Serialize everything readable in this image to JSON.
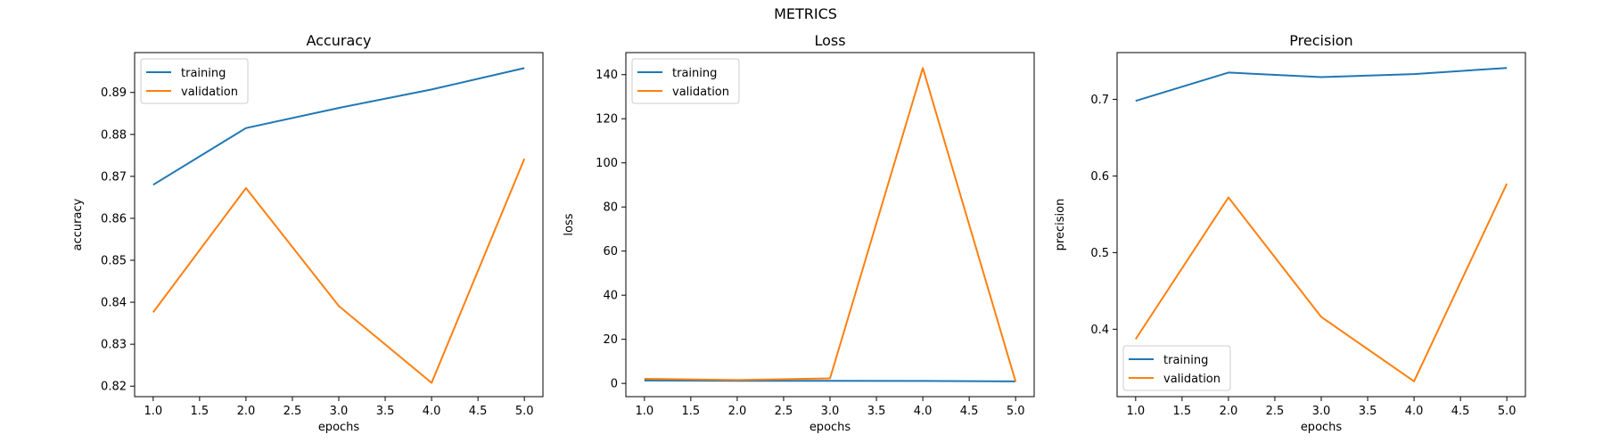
{
  "figure": {
    "title": "METRICS"
  },
  "chart_data": [
    {
      "type": "line",
      "title": "Accuracy",
      "xlabel": "epochs",
      "ylabel": "accuracy",
      "x": [
        1,
        2,
        3,
        4,
        5
      ],
      "xlim": [
        0.8,
        5.2
      ],
      "ylim": [
        0.8175,
        0.8995
      ],
      "xticks": [
        "1.0",
        "1.5",
        "2.0",
        "2.5",
        "3.0",
        "3.5",
        "4.0",
        "4.5",
        "5.0"
      ],
      "yticks": [
        "0.82",
        "0.83",
        "0.84",
        "0.85",
        "0.86",
        "0.87",
        "0.88",
        "0.89"
      ],
      "grid": false,
      "legend": "upper left",
      "series": [
        {
          "name": "training",
          "color": "#1f77b4",
          "values": [
            0.868,
            0.8815,
            0.8863,
            0.8907,
            0.8958
          ]
        },
        {
          "name": "validation",
          "color": "#ff7f0e",
          "values": [
            0.8376,
            0.8672,
            0.8391,
            0.8208,
            0.8742
          ]
        }
      ]
    },
    {
      "type": "line",
      "title": "Loss",
      "xlabel": "epochs",
      "ylabel": "loss",
      "x": [
        1,
        2,
        3,
        4,
        5
      ],
      "xlim": [
        0.8,
        5.2
      ],
      "ylim": [
        -6,
        150
      ],
      "xticks": [
        "1.0",
        "1.5",
        "2.0",
        "2.5",
        "3.0",
        "3.5",
        "4.0",
        "4.5",
        "5.0"
      ],
      "yticks": [
        "0",
        "20",
        "40",
        "60",
        "80",
        "100",
        "120",
        "140"
      ],
      "grid": false,
      "legend": "upper left",
      "series": [
        {
          "name": "training",
          "color": "#1f77b4",
          "values": [
            1.3,
            1.2,
            1.2,
            1.1,
            0.9
          ]
        },
        {
          "name": "validation",
          "color": "#ff7f0e",
          "values": [
            2.1,
            1.5,
            2.3,
            143,
            0.8
          ]
        }
      ]
    },
    {
      "type": "line",
      "title": "Precision",
      "xlabel": "epochs",
      "ylabel": "precision",
      "x": [
        1,
        2,
        3,
        4,
        5
      ],
      "xlim": [
        0.8,
        5.2
      ],
      "ylim": [
        0.312,
        0.761
      ],
      "xticks": [
        "1.0",
        "1.5",
        "2.0",
        "2.5",
        "3.0",
        "3.5",
        "4.0",
        "4.5",
        "5.0"
      ],
      "yticks": [
        "0.4",
        "0.5",
        "0.6",
        "0.7"
      ],
      "grid": false,
      "legend": "lower left",
      "series": [
        {
          "name": "training",
          "color": "#1f77b4",
          "values": [
            0.698,
            0.735,
            0.729,
            0.733,
            0.741
          ]
        },
        {
          "name": "validation",
          "color": "#ff7f0e",
          "values": [
            0.387,
            0.572,
            0.416,
            0.332,
            0.59
          ]
        }
      ]
    }
  ]
}
